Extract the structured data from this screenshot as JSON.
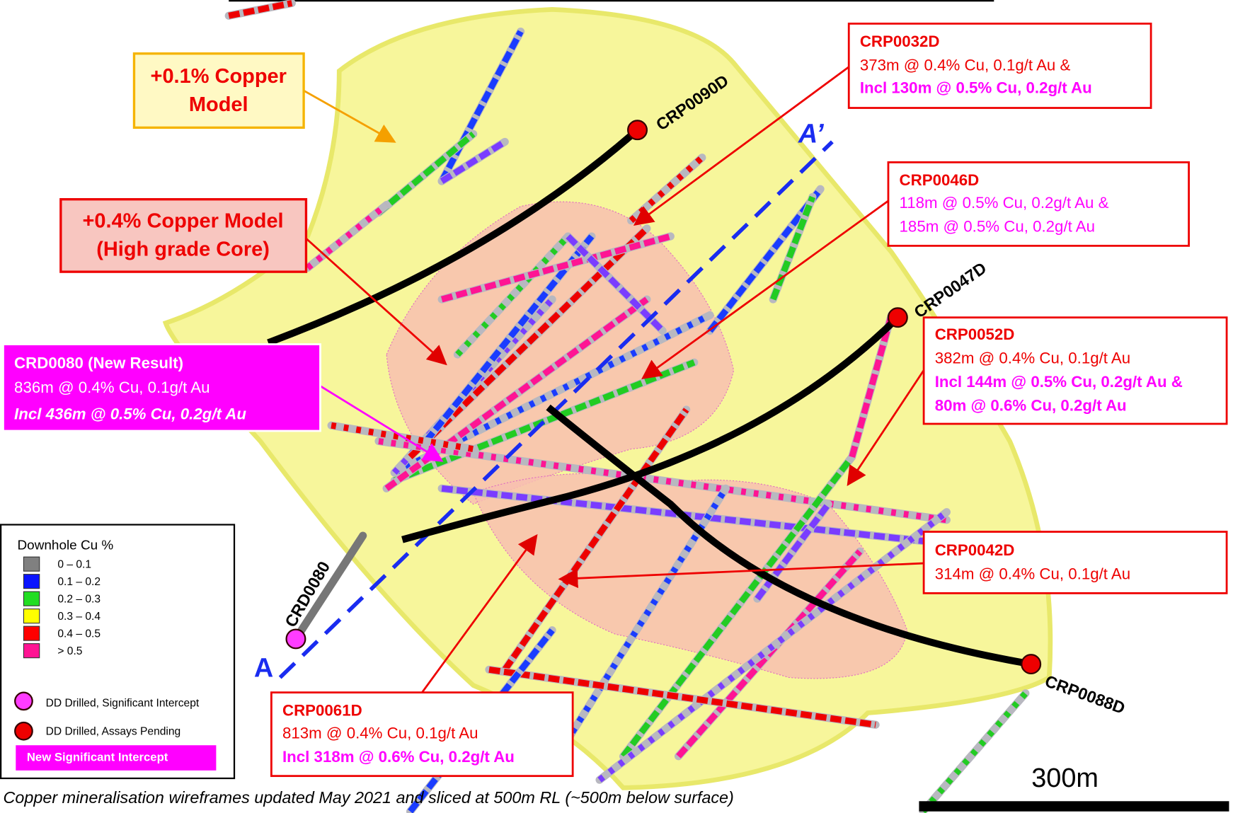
{
  "models": [
    {
      "label_lines": [
        "+0.1% Copper",
        "Model"
      ]
    },
    {
      "label_lines": [
        "+0.4% Copper Model",
        "(High grade Core)"
      ]
    }
  ],
  "holes": [
    "CRP0090D",
    "CRP0047D",
    "CRP0088D",
    "CRD0080"
  ],
  "section_labels": [
    "A",
    "A’"
  ],
  "callouts": [
    {
      "title": "CRP0032D",
      "lines": [
        "373m @ 0.4% Cu, 0.1g/t Au &",
        "Incl 130m @ 0.5% Cu, 0.2g/t Au"
      ]
    },
    {
      "title": "CRP0046D",
      "lines": [
        "118m @ 0.5% Cu, 0.2g/t Au &",
        "185m @ 0.5% Cu, 0.2g/t Au"
      ]
    },
    {
      "title": "CRD0080 (New Result)",
      "lines": [
        "836m @ 0.4% Cu, 0.1g/t Au",
        "Incl 436m @ 0.5% Cu, 0.2g/t Au"
      ]
    },
    {
      "title": "CRP0052D",
      "lines": [
        "382m @ 0.4% Cu, 0.1g/t Au",
        "Incl 144m @ 0.5% Cu, 0.2g/t Au &",
        "80m @ 0.6% Cu, 0.2g/t Au"
      ]
    },
    {
      "title": "CRP0042D",
      "lines": [
        "314m @ 0.4% Cu, 0.1g/t Au"
      ]
    },
    {
      "title": "CRP0061D",
      "lines": [
        "813m @ 0.4% Cu, 0.1g/t Au",
        "Incl 318m @ 0.6% Cu, 0.2g/t Au"
      ]
    }
  ],
  "legend": {
    "title": "Downhole Cu %",
    "classes": [
      "0 – 0.1",
      "0.1 – 0.2",
      "0.2 – 0.3",
      "0.3 – 0.4",
      "0.4 – 0.5",
      "> 0.5"
    ],
    "symbols": [
      "DD Drilled, Significant Intercept",
      "DD Drilled, Assays Pending"
    ],
    "new_intercept": "New Significant Intercept"
  },
  "scale_bar": "300m",
  "caption": "Copper mineralisation wireframes updated May 2021 and  sliced at 500m RL (~500m below surface)"
}
